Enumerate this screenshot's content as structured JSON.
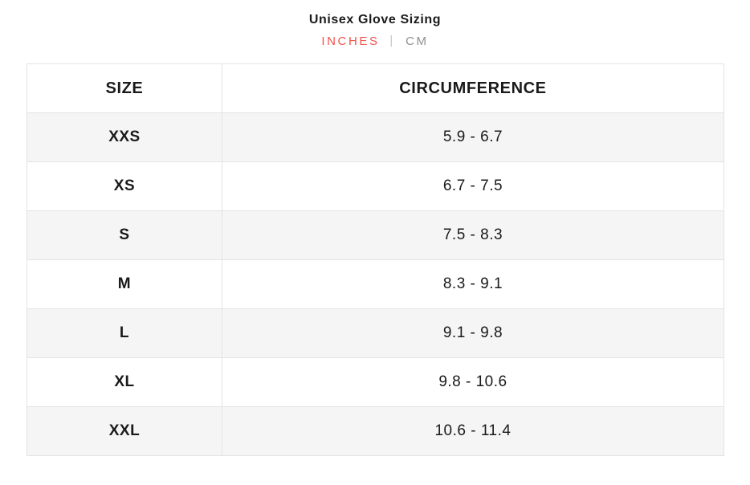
{
  "header": {
    "title": "Unisex Glove Sizing",
    "unit_toggle": {
      "options": [
        {
          "label": "INCHES",
          "active": true
        },
        {
          "label": "CM",
          "active": false
        }
      ],
      "separator": "|",
      "active_color": "#f2524c",
      "inactive_color": "#8f8f8f"
    }
  },
  "table": {
    "columns": [
      "SIZE",
      "CIRCUMFERENCE"
    ],
    "rows": [
      {
        "size": "XXS",
        "circumference": "5.9 - 6.7"
      },
      {
        "size": "XS",
        "circumference": "6.7 - 7.5"
      },
      {
        "size": "S",
        "circumference": "7.5 - 8.3"
      },
      {
        "size": "M",
        "circumference": "8.3 - 9.1"
      },
      {
        "size": "L",
        "circumference": "9.1 - 9.8"
      },
      {
        "size": "XL",
        "circumference": "9.8 - 10.6"
      },
      {
        "size": "XXL",
        "circumference": "10.6 - 11.4"
      }
    ],
    "stripe_color": "#f5f5f5",
    "border_color": "#e3e3e3"
  }
}
